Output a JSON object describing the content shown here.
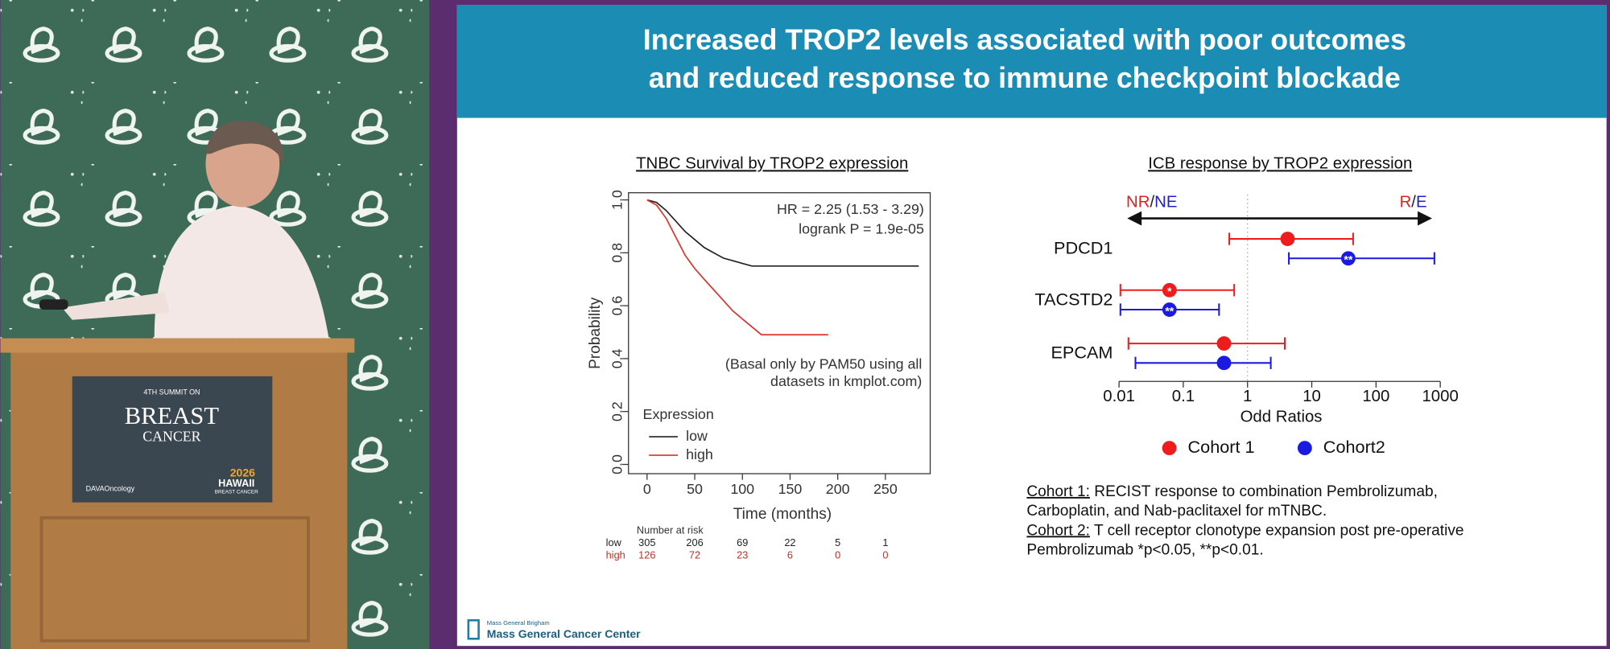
{
  "slide": {
    "title_lines": [
      "Increased TROP2 levels associated with poor outcomes",
      "and reduced response to immune checkpoint blockade"
    ]
  },
  "podium": {
    "line1": "4TH SUMMIT ON",
    "line2": "BREAST",
    "line3": "CANCER",
    "brand": "DAVAOncology",
    "year": "2026",
    "place": "HAWAII",
    "place_sub": "BREAST CANCER"
  },
  "chart_data": [
    {
      "type": "line",
      "title": "TNBC Survival by TROP2 expression",
      "xlabel": "Time (months)",
      "ylabel": "Probability",
      "annotations": [
        "HR = 2.25 (1.53 - 3.29)",
        "logrank P = 1.9e-05",
        "(Basal only by PAM50 using all",
        "datasets in kmplot.com)"
      ],
      "legend_title": "Expression",
      "xlim": [
        -19.5,
        297
      ],
      "ylim": [
        -0.035,
        1.027
      ],
      "xticks": [
        0,
        50,
        100,
        150,
        200,
        250
      ],
      "yticks": [
        {
          "value": 0,
          "label": "0.0"
        },
        0.2,
        0.4,
        0.6,
        0.8,
        {
          "value": 1,
          "label": "1.0"
        }
      ],
      "series": [
        {
          "name": "low",
          "color": "#222222",
          "x": [
            0,
            10,
            20,
            30,
            40,
            50,
            60,
            70,
            80,
            90,
            100,
            110,
            120,
            150,
            200,
            285
          ],
          "values": [
            1,
            0.99,
            0.96,
            0.92,
            0.88,
            0.85,
            0.82,
            0.8,
            0.78,
            0.77,
            0.76,
            0.75,
            0.75,
            0.75,
            0.75,
            0.75
          ]
        },
        {
          "name": "high",
          "color": "#d9302a",
          "x": [
            0,
            10,
            20,
            30,
            40,
            50,
            60,
            70,
            80,
            90,
            100,
            110,
            120,
            150,
            190
          ],
          "values": [
            1,
            0.98,
            0.93,
            0.86,
            0.79,
            0.74,
            0.7,
            0.66,
            0.62,
            0.58,
            0.55,
            0.52,
            0.49,
            0.49,
            0.49
          ]
        }
      ],
      "risk_table": {
        "title": "Number at risk",
        "rows": [
          {
            "name": "low",
            "color": "#222222",
            "values": [
              305,
              206,
              69,
              22,
              5,
              1
            ]
          },
          {
            "name": "high",
            "color": "#c0302a",
            "values": [
              126,
              72,
              23,
              6,
              0,
              0
            ]
          }
        ]
      }
    },
    {
      "type": "forest",
      "title": "ICB response by TROP2 expression",
      "xlabel": "Odd Ratios",
      "log_x": true,
      "xlim": [
        0.01,
        1000
      ],
      "xticks": [
        0.01,
        0.1,
        1,
        10,
        100,
        1000
      ],
      "ref_line": 1,
      "arrow_left": [
        {
          "text": "NR",
          "color": "#e02020"
        },
        {
          "text": "/",
          "color": "#222222"
        },
        {
          "text": "NE",
          "color": "#2020c8"
        }
      ],
      "arrow_right": [
        {
          "text": "R",
          "color": "#e02020"
        },
        {
          "text": "/",
          "color": "#222222"
        },
        {
          "text": "E",
          "color": "#2020c8"
        }
      ],
      "categories": [
        "PDCD1",
        "TACSTD2",
        "EPCAM"
      ],
      "series": [
        {
          "name": "Cohort 1",
          "color": "#ee1c1c",
          "values": [
            4.2,
            0.061,
            0.43
          ],
          "lower": [
            0.52,
            0.0105,
            0.014
          ],
          "upper": [
            44,
            0.62,
            3.8
          ],
          "star_labels": [
            null,
            "*",
            null
          ]
        },
        {
          "name": "Cohort2",
          "color": "#1a1ae0",
          "values": [
            37,
            0.061,
            0.43
          ],
          "lower": [
            4.4,
            0.0105,
            0.018
          ],
          "upper": [
            810,
            0.36,
            2.3
          ],
          "star_labels": [
            "**",
            "**",
            null
          ]
        }
      ]
    }
  ],
  "notes": [
    {
      "label": "Cohort 1:",
      "lines": [
        " RECIST response to combination Pembrolizumab,",
        "Carboplatin, and Nab-paclitaxel for mTNBC."
      ]
    },
    {
      "label": "Cohort 2:",
      "lines": [
        " T cell receptor clonotype expansion post pre-operative",
        "Pembrolizumab *p<0.05, **p<0.01."
      ]
    }
  ],
  "footer": {
    "org": "Mass General Brigham",
    "center": "Mass General Cancer Center"
  }
}
